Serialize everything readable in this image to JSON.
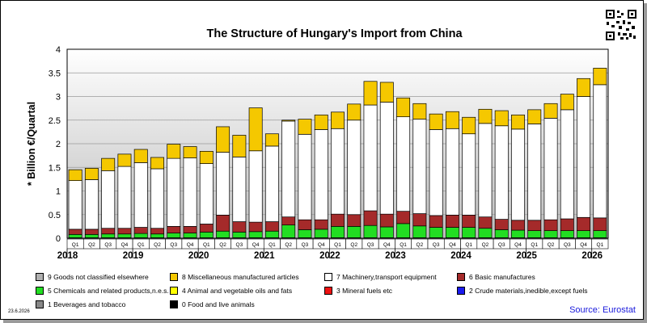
{
  "footer": {
    "date": "23.6.2026",
    "source": "Source: Eurostat"
  },
  "chart_data": {
    "type": "bar",
    "stacked": true,
    "title": "The Structure of Hungary's Import from China",
    "ylabel": "* Billion €/Quartal",
    "ylim": [
      0,
      4
    ],
    "yticks": [
      "0",
      "0.5",
      "1",
      "1.5",
      "2",
      "2.5",
      "3",
      "3.5",
      "4"
    ],
    "grid": true,
    "legend_position": "bottom",
    "quarter_labels": [
      "Q1",
      "Q2",
      "Q3",
      "Q4",
      "Q1",
      "Q2",
      "Q3",
      "Q4",
      "Q1",
      "Q2",
      "Q3",
      "Q4",
      "Q1",
      "Q2",
      "Q3",
      "Q4",
      "Q1",
      "Q2",
      "Q3",
      "Q4",
      "Q1",
      "Q2",
      "Q3",
      "Q4",
      "Q1",
      "Q2",
      "Q3",
      "Q4",
      "Q1",
      "Q2",
      "Q3",
      "Q4",
      "Q1"
    ],
    "year_labels": [
      {
        "label": "2018",
        "first_bar": 0
      },
      {
        "label": "2019",
        "first_bar": 4
      },
      {
        "label": "2020",
        "first_bar": 8
      },
      {
        "label": "2021",
        "first_bar": 12
      },
      {
        "label": "2022",
        "first_bar": 16
      },
      {
        "label": "2023",
        "first_bar": 20
      },
      {
        "label": "2024",
        "first_bar": 24
      },
      {
        "label": "2025",
        "first_bar": 28
      },
      {
        "label": "2026",
        "first_bar": 32
      }
    ],
    "series": [
      {
        "code": "0",
        "name": "0 Food and live animals",
        "color": "#000000",
        "values": [
          0.01,
          0.01,
          0.01,
          0.01,
          0.01,
          0.01,
          0.01,
          0.01,
          0.01,
          0.01,
          0.01,
          0.01,
          0.01,
          0.01,
          0.01,
          0.01,
          0.01,
          0.01,
          0.01,
          0.01,
          0.01,
          0.01,
          0.01,
          0.01,
          0.01,
          0.01,
          0.01,
          0.01,
          0.01,
          0.01,
          0.01,
          0.01,
          0.01
        ]
      },
      {
        "code": "5",
        "name": "5 Chemicals and related products,n.e.s.",
        "color": "#22dd22",
        "values": [
          0.07,
          0.07,
          0.08,
          0.08,
          0.09,
          0.08,
          0.1,
          0.1,
          0.12,
          0.14,
          0.12,
          0.13,
          0.14,
          0.27,
          0.17,
          0.18,
          0.24,
          0.24,
          0.26,
          0.23,
          0.3,
          0.25,
          0.22,
          0.22,
          0.22,
          0.2,
          0.17,
          0.16,
          0.15,
          0.15,
          0.15,
          0.15,
          0.15
        ]
      },
      {
        "code": "6",
        "name": "6 Basic manufactures",
        "color": "#a52a2a",
        "values": [
          0.11,
          0.11,
          0.12,
          0.12,
          0.13,
          0.12,
          0.14,
          0.14,
          0.17,
          0.34,
          0.22,
          0.2,
          0.2,
          0.17,
          0.21,
          0.2,
          0.26,
          0.25,
          0.31,
          0.27,
          0.26,
          0.26,
          0.25,
          0.26,
          0.26,
          0.24,
          0.22,
          0.21,
          0.22,
          0.23,
          0.25,
          0.28,
          0.27
        ]
      },
      {
        "code": "7",
        "name": "7 Machinery,transport equipment",
        "color": "#ffffff",
        "values": [
          1.03,
          1.05,
          1.22,
          1.31,
          1.37,
          1.26,
          1.44,
          1.45,
          1.28,
          1.33,
          1.37,
          1.51,
          1.6,
          2.03,
          1.81,
          1.91,
          1.81,
          2.0,
          2.24,
          2.37,
          2.0,
          2.0,
          1.82,
          1.83,
          1.72,
          1.98,
          1.98,
          1.93,
          2.04,
          2.15,
          2.31,
          2.56,
          2.82
        ]
      },
      {
        "code": "8",
        "name": "8 Miscellaneous manufactured articles",
        "color": "#f5c800",
        "values": [
          0.23,
          0.24,
          0.26,
          0.26,
          0.28,
          0.24,
          0.3,
          0.24,
          0.26,
          0.54,
          0.46,
          0.91,
          0.26,
          0.02,
          0.32,
          0.31,
          0.35,
          0.34,
          0.5,
          0.42,
          0.4,
          0.33,
          0.33,
          0.36,
          0.35,
          0.3,
          0.32,
          0.3,
          0.3,
          0.31,
          0.33,
          0.38,
          0.35
        ]
      }
    ],
    "legend": [
      {
        "name": "9 Goods not classified elsewhere",
        "color": "#b0b0b0"
      },
      {
        "name": "8 Miscellaneous manufactured articles",
        "color": "#f5c800"
      },
      {
        "name": "7 Machinery,transport equipment",
        "color": "#ffffff"
      },
      {
        "name": "6 Basic manufactures",
        "color": "#a52a2a"
      },
      {
        "name": "5 Chemicals and related products,n.e.s.",
        "color": "#22dd22"
      },
      {
        "name": "4 Animal and vegetable oils and fats",
        "color": "#ffff00"
      },
      {
        "name": "3 Mineral fuels etc",
        "color": "#ee1111"
      },
      {
        "name": "2 Crude materials,inedible,except fuels",
        "color": "#1a1aee"
      },
      {
        "name": "1 Beverages and tobacco",
        "color": "#888888"
      },
      {
        "name": "0 Food and live animals",
        "color": "#000000"
      }
    ]
  }
}
